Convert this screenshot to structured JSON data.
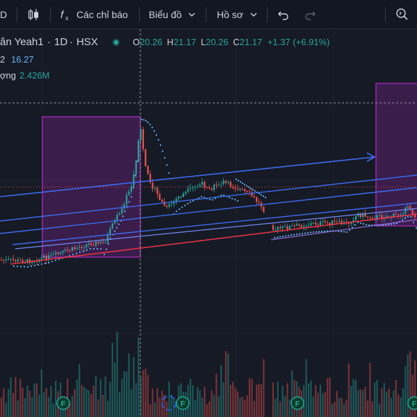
{
  "toolbar": {
    "interval": "D",
    "indicators_label": "Các chỉ báo",
    "chart_type_label": "Biểu đồ",
    "profile_label": "Hồ sơ"
  },
  "symbol": {
    "name": "ân Yeah1",
    "interval": "1D",
    "exchange": "HSX"
  },
  "ohlc": {
    "o_label": "O",
    "open": "20.26",
    "h_label": "H",
    "high": "21.17",
    "l_label": "L",
    "low": "20.26",
    "c_label": "C",
    "close": "21.17",
    "change": "+1.37 (+6.91%)"
  },
  "indicator_1": {
    "label": "2",
    "value": "16.27"
  },
  "volume": {
    "label": "ợng",
    "value": "2.426M"
  },
  "markers": [
    "F",
    "F",
    "F",
    "F"
  ],
  "colors": {
    "background": "#161a25",
    "up": "#26a69a",
    "down": "#ef5350",
    "channel": "#3d6df2",
    "box": "#9c27b0",
    "trend": "#f23645",
    "dots": "#64b5f6"
  },
  "chart_data": {
    "type": "candlestick",
    "series": [
      {
        "name": "",
        "last": {
          "open": 20.26,
          "high": 21.17,
          "low": 20.26,
          "close": 21.17
        }
      }
    ]
  }
}
